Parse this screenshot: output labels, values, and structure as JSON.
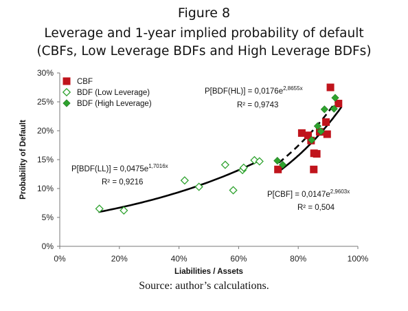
{
  "figure": {
    "number_label": "Figure 8",
    "title_line1": "Leverage and 1-year implied probability of default",
    "title_line2": "(CBFs, Low Leverage BDFs and High Leverage BDFs)",
    "source": "Source: author’s calculations."
  },
  "chart_data": {
    "type": "scatter",
    "xlabel": "Liabilities / Assets",
    "ylabel": "Probability of Default",
    "xlim": [
      0,
      1
    ],
    "ylim": [
      0,
      0.3
    ],
    "x_ticks": [
      "0%",
      "20%",
      "40%",
      "60%",
      "80%",
      "100%"
    ],
    "y_ticks": [
      "0%",
      "5%",
      "10%",
      "15%",
      "20%",
      "25%",
      "30%"
    ],
    "grid": false,
    "legend_position": "top-left",
    "colors": {
      "cbf": "#c0141c",
      "bdf_low": "#2ea22e",
      "bdf_high": "#2ea22e",
      "fit": "#000000"
    },
    "series": [
      {
        "name": "CBF",
        "marker": "square",
        "points": [
          [
            0.732,
            0.133
          ],
          [
            0.812,
            0.196
          ],
          [
            0.833,
            0.192
          ],
          [
            0.843,
            0.183
          ],
          [
            0.852,
            0.133
          ],
          [
            0.853,
            0.161
          ],
          [
            0.862,
            0.16
          ],
          [
            0.872,
            0.198
          ],
          [
            0.893,
            0.215
          ],
          [
            0.897,
            0.194
          ],
          [
            0.908,
            0.275
          ],
          [
            0.935,
            0.247
          ]
        ]
      },
      {
        "name": "BDF (Low Leverage)",
        "marker": "diamond-open",
        "points": [
          [
            0.133,
            0.065
          ],
          [
            0.215,
            0.062
          ],
          [
            0.419,
            0.114
          ],
          [
            0.467,
            0.103
          ],
          [
            0.555,
            0.141
          ],
          [
            0.582,
            0.097
          ],
          [
            0.613,
            0.132
          ],
          [
            0.617,
            0.136
          ],
          [
            0.653,
            0.149
          ],
          [
            0.67,
            0.147
          ]
        ]
      },
      {
        "name": "BDF (High Leverage)",
        "marker": "diamond-filled",
        "points": [
          [
            0.73,
            0.148
          ],
          [
            0.748,
            0.141
          ],
          [
            0.845,
            0.184
          ],
          [
            0.865,
            0.208
          ],
          [
            0.876,
            0.199
          ],
          [
            0.888,
            0.237
          ],
          [
            0.92,
            0.238
          ],
          [
            0.924,
            0.257
          ]
        ]
      }
    ],
    "fits": [
      {
        "series": "BDF (Low Leverage)",
        "style": "solid",
        "a": 0.0475,
        "b": 1.7016,
        "x_range": [
          0.13,
          0.675
        ],
        "equation": "P[BDF(LL)] = 0,0475e",
        "exponent": "1,7016x",
        "r2": "R² = 0,9216"
      },
      {
        "series": "BDF (High Leverage)",
        "style": "dashed",
        "a": 0.0176,
        "b": 2.8655,
        "x_range": [
          0.735,
          0.93
        ],
        "equation": "P[BDF(HL)] = 0,0176e",
        "exponent": "2,8655x",
        "r2": "R² = 0,9743"
      },
      {
        "series": "CBF",
        "style": "solid",
        "a": 0.0147,
        "b": 2.9603,
        "x_range": [
          0.735,
          0.945
        ],
        "equation": "P[CBF] = 0,0147e",
        "exponent": "2,9603x",
        "r2": "R² = 0,504"
      }
    ]
  }
}
